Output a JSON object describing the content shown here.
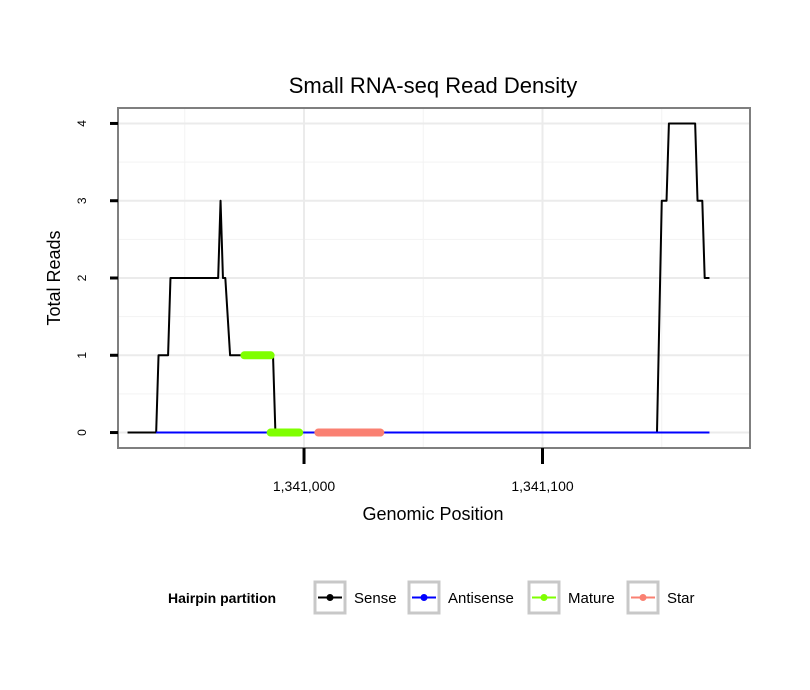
{
  "chart_data": {
    "type": "line",
    "title": "Small RNA-seq Read Density",
    "xlabel": "Genomic Position",
    "ylabel": "Total Reads",
    "xlim": [
      1340922,
      1341187
    ],
    "ylim": [
      -0.2,
      4.2
    ],
    "x_ticks": [
      1341000,
      1341100
    ],
    "x_tick_labels": [
      "1,341,000",
      "1,341,100"
    ],
    "y_ticks": [
      0,
      1,
      2,
      3,
      4
    ],
    "y_tick_labels": [
      "0",
      "1",
      "2",
      "3",
      "4"
    ],
    "grid": true,
    "legend": {
      "title": "Hairpin partition",
      "position": "bottom",
      "entries": [
        "Sense",
        "Antisense",
        "Mature",
        "Star"
      ]
    },
    "series": [
      {
        "name": "Sense",
        "color": "#000000",
        "x": [
          1340926,
          1340938,
          1340939,
          1340943,
          1340944,
          1340964,
          1340965,
          1340966,
          1340967,
          1340969,
          1340970,
          1340987,
          1340988,
          1341148,
          1341150,
          1341152,
          1341153,
          1341164,
          1341165,
          1341167,
          1341168,
          1341170
        ],
        "y": [
          0,
          0,
          1,
          1,
          2,
          2,
          3,
          2,
          2,
          1,
          1,
          1,
          0,
          0,
          3,
          3,
          4,
          4,
          3,
          3,
          2,
          2
        ]
      },
      {
        "name": "Antisense",
        "color": "#0000ff",
        "x": [
          1340938,
          1341170
        ],
        "y": [
          0,
          0
        ]
      }
    ],
    "segments": [
      {
        "name": "Mature",
        "color": "#7fff00",
        "x": [
          1340975,
          1340986
        ],
        "y": 1
      },
      {
        "name": "Mature",
        "color": "#7fff00",
        "x": [
          1340986,
          1340998
        ],
        "y": 0
      },
      {
        "name": "Star",
        "color": "#fa8072",
        "x": [
          1341006,
          1341032
        ],
        "y": 0
      }
    ]
  }
}
